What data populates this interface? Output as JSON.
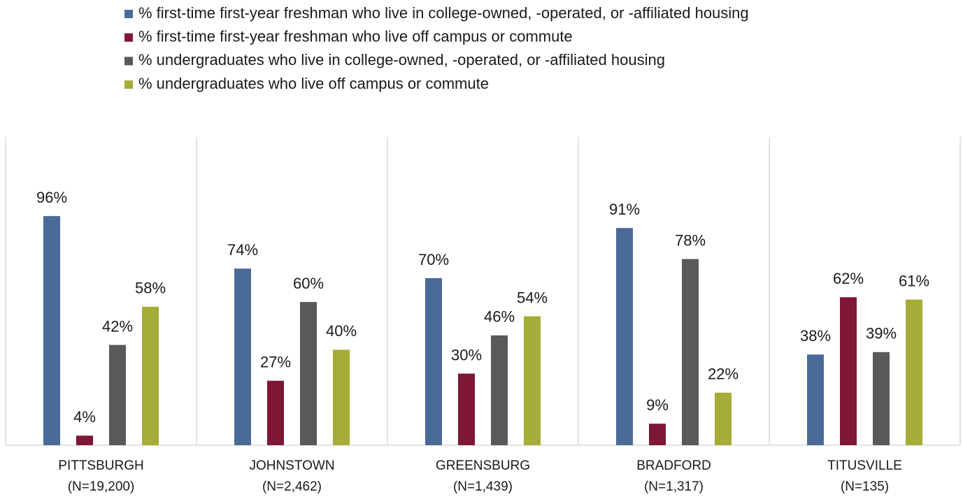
{
  "chart_data": {
    "type": "bar",
    "categories": [
      "PITTSBURGH",
      "JOHNSTOWN",
      "GREENSBURG",
      "BRADFORD",
      "TITUSVILLE"
    ],
    "category_notes": [
      "(N=19,200)",
      "(N=2,462)",
      "(N=1,439)",
      "(N=1,317)",
      "(N=135)"
    ],
    "ylim": [
      0,
      100
    ],
    "series": [
      {
        "name": "% first-time first-year freshman who live in college-owned, -operated, or -affiliated housing",
        "color": "#4a6a98",
        "values": [
          96,
          74,
          70,
          91,
          38
        ],
        "value_labels": [
          "96%",
          "74%",
          "70%",
          "91%",
          "38%"
        ]
      },
      {
        "name": "% first-time first-year freshman who live off campus or commute",
        "color": "#7d1734",
        "values": [
          4,
          27,
          30,
          9,
          62
        ],
        "value_labels": [
          "4%",
          "27%",
          "30%",
          "9%",
          "62%"
        ]
      },
      {
        "name": "% undergraduates who live in college-owned, -operated, or -affiliated housing",
        "color": "#595959",
        "values": [
          42,
          60,
          46,
          78,
          39
        ],
        "value_labels": [
          "42%",
          "60%",
          "46%",
          "78%",
          "39%"
        ]
      },
      {
        "name": "% undergraduates who live off campus or commute",
        "color": "#a5ac38",
        "values": [
          58,
          40,
          54,
          22,
          61
        ],
        "value_labels": [
          "58%",
          "40%",
          "54%",
          "22%",
          "61%"
        ]
      }
    ]
  }
}
